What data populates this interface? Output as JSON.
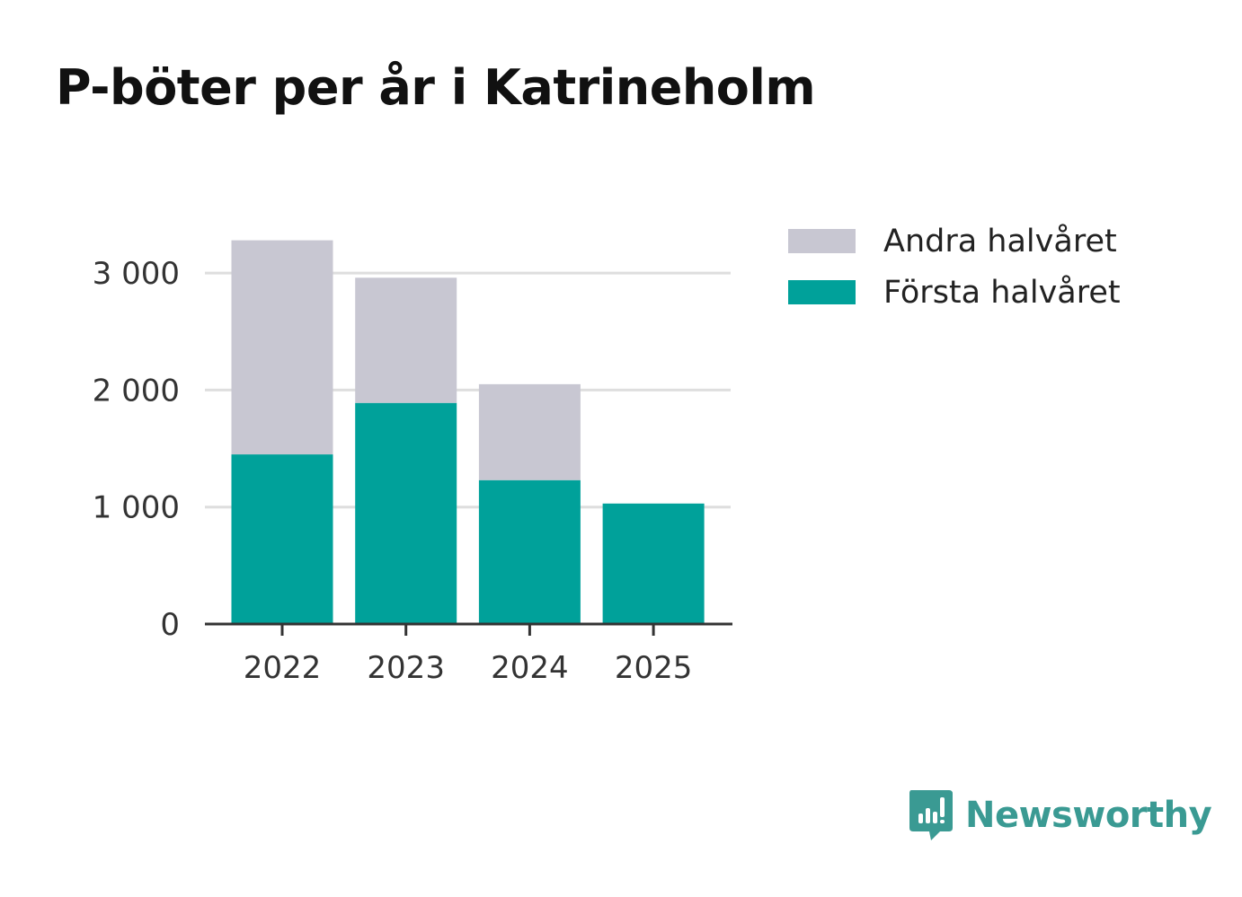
{
  "chart_data": {
    "type": "bar",
    "stacked": true,
    "title": "P-böter per år i Katrineholm",
    "categories": [
      "2022",
      "2023",
      "2024",
      "2025"
    ],
    "series": [
      {
        "name": "Första halvåret",
        "color": "#00a19a",
        "values": [
          1450,
          1890,
          1230,
          1030
        ]
      },
      {
        "name": "Andra halvåret",
        "color": "#c8c7d2",
        "values": [
          1830,
          1070,
          820,
          0
        ]
      }
    ],
    "legend_order": [
      "Andra halvåret",
      "Första halvåret"
    ],
    "yticks": [
      0,
      1000,
      2000,
      3000
    ],
    "ytick_labels": [
      "0",
      "1 000",
      "2 000",
      "3 000"
    ],
    "ylim": [
      0,
      3000
    ],
    "xlabel": "",
    "ylabel": "",
    "grid": true,
    "legend_position": "top-right"
  },
  "legend": {
    "items": [
      {
        "label": "Andra halvåret",
        "color": "#c8c7d2"
      },
      {
        "label": "Första halvåret",
        "color": "#00a19a"
      }
    ]
  },
  "brand": {
    "name": "Newsworthy",
    "icon": "newsworthy-logo-icon",
    "color": "#3a9a93"
  }
}
